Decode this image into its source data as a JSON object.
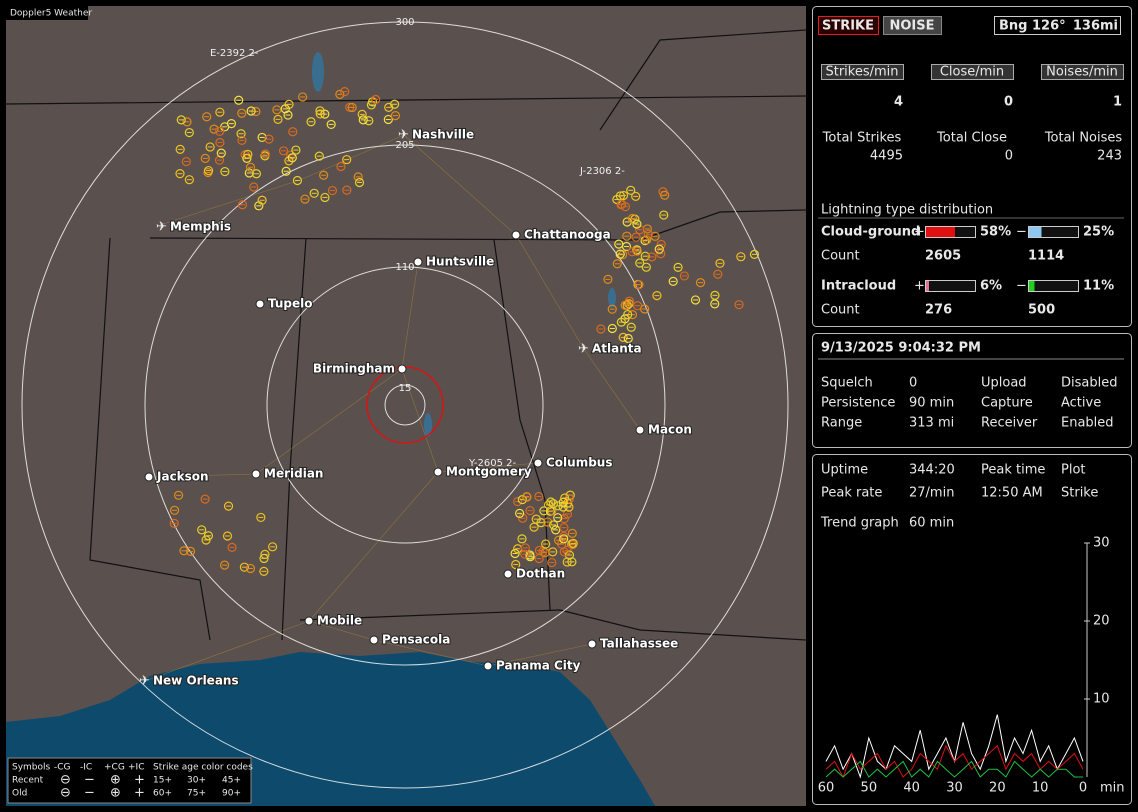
{
  "app_title": "Doppler5 Weather",
  "map": {
    "range_labels": [
      "300",
      "205",
      "110",
      "15"
    ],
    "storm_ids": [
      "E-2392 2-",
      "J-2306 2-",
      "Y-2605 2-"
    ],
    "cities": [
      "Nashville",
      "Memphis",
      "Chattanooga",
      "Huntsville",
      "Tupelo",
      "Atlanta",
      "Birmingham",
      "Macon",
      "Jackson",
      "Meridian",
      "Montgomery",
      "Columbus",
      "Dothan",
      "Mobile",
      "Pensacola",
      "Tallahassee",
      "Panama City",
      "New Orleans"
    ]
  },
  "legend": {
    "symbols_title": "Symbols",
    "symbol_headers": [
      "-CG",
      "-IC",
      "+CG",
      "+IC"
    ],
    "age_title": "Strike age color codes",
    "rows": [
      "Recent",
      "Old"
    ],
    "recent_ages": [
      "15+",
      "30+",
      "45+"
    ],
    "old_ages": [
      "60+",
      "75+",
      "90+"
    ]
  },
  "panel": {
    "modes": [
      "STRIKE",
      "NOISE"
    ],
    "bearing": "Bng 126°",
    "distance": "136mi",
    "rate_headers": [
      "Strikes/min",
      "Close/min",
      "Noises/min"
    ],
    "rates": [
      4,
      0,
      1
    ],
    "total_labels": [
      "Total Strikes",
      "Total Close",
      "Total Noises"
    ],
    "totals": [
      4495,
      0,
      243
    ],
    "distribution_title": "Lightning type distribution",
    "count_label": "Count",
    "types": [
      {
        "name": "Cloud-ground",
        "pos_sign": "+",
        "neg_sign": "−",
        "pos_pct": {
          "value": 58,
          "label": "58%"
        },
        "neg_pct": {
          "value": 25,
          "label": "25%"
        },
        "pos_count": 2605,
        "neg_count": 1114
      },
      {
        "name": "Intracloud",
        "pos_sign": "+",
        "neg_sign": "−",
        "pos_pct": {
          "value": 6,
          "label": "6%"
        },
        "neg_pct": {
          "value": 11,
          "label": "11%"
        },
        "pos_count": 276,
        "neg_count": 500
      }
    ],
    "datetime": "9/13/2025 9:04:32 PM",
    "settings": [
      [
        "Squelch",
        "0",
        "Upload",
        "Disabled"
      ],
      [
        "Persistence",
        "90 min",
        "Capture",
        "Active"
      ],
      [
        "Range",
        "313 mi",
        "Receiver",
        "Enabled"
      ]
    ],
    "stats": [
      [
        "Uptime",
        "344:20",
        "Peak time",
        "Plot"
      ],
      [
        "Peak rate",
        "27/min",
        "12:50 AM",
        "Strike"
      ]
    ],
    "trend_label": "Trend graph",
    "trend_span": "60 min"
  },
  "trend_graph": {
    "xlim": [
      60,
      0
    ],
    "ylim": [
      0,
      30
    ],
    "xticks": [
      60,
      50,
      40,
      30,
      20,
      10,
      0
    ],
    "yticks": [
      10,
      20,
      30
    ],
    "x_unit": "min",
    "series": [
      {
        "color": "#ffffff",
        "values": [
          2,
          4,
          1,
          3,
          0,
          5,
          2,
          1,
          4,
          3,
          2,
          6,
          1,
          3,
          5,
          2,
          7,
          3,
          1,
          4,
          8,
          2,
          5,
          3,
          6,
          2,
          4,
          1,
          3,
          5,
          2
        ]
      },
      {
        "color": "#e01010",
        "values": [
          1,
          2,
          0,
          3,
          1,
          2,
          3,
          1,
          2,
          0,
          1,
          3,
          2,
          1,
          4,
          2,
          3,
          1,
          2,
          3,
          4,
          1,
          3,
          2,
          3,
          1,
          2,
          1,
          2,
          3,
          1
        ]
      },
      {
        "color": "#20c040",
        "values": [
          0,
          1,
          0,
          1,
          2,
          0,
          1,
          0,
          1,
          2,
          0,
          1,
          0,
          2,
          1,
          0,
          1,
          2,
          0,
          1,
          1,
          0,
          2,
          1,
          0,
          1,
          0,
          1,
          1,
          0,
          0
        ]
      }
    ]
  }
}
